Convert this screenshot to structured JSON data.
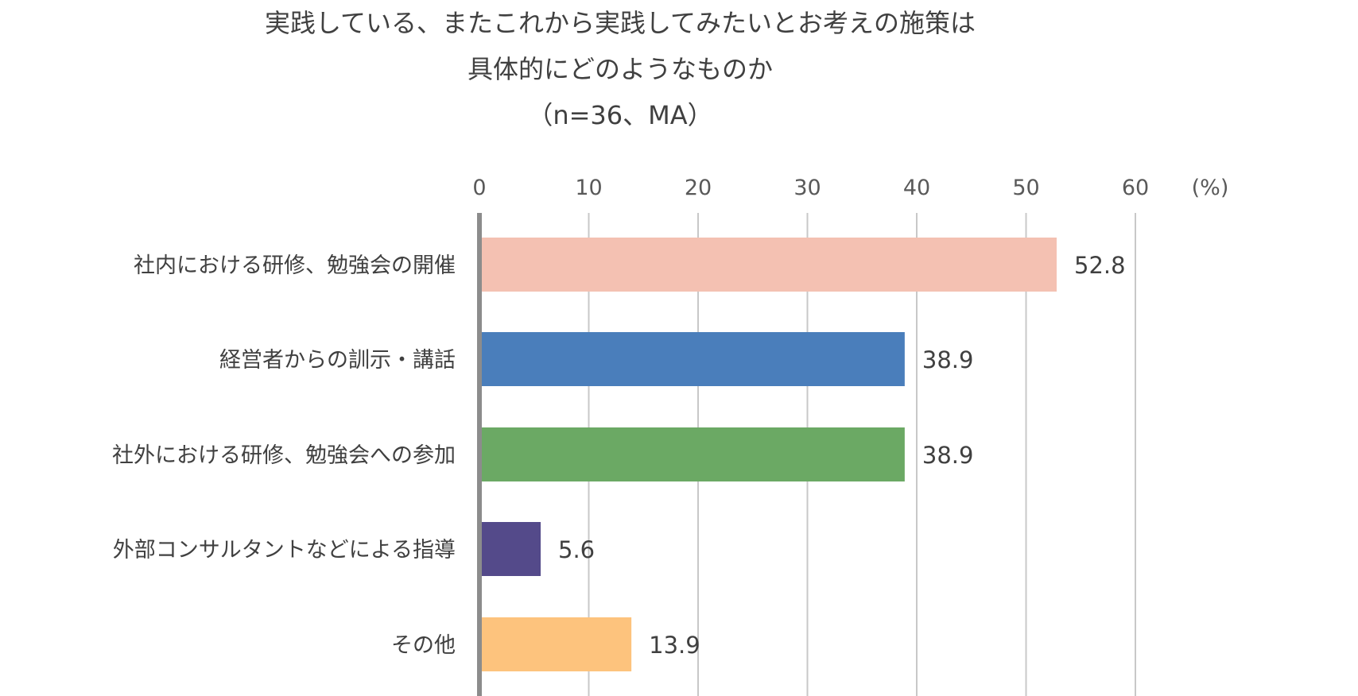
{
  "chart_data": {
    "type": "bar",
    "orientation": "horizontal",
    "title_lines": [
      "実践している、またこれから実践してみたいとお考えの施策は",
      "具体的にどのようなものか",
      "（n=36、MA）"
    ],
    "unit_label": "(%)",
    "categories": [
      "社内における研修、勉強会の開催",
      "経営者からの訓示・講話",
      "社外における研修、勉強会への参加",
      "外部コンサルタントなどによる指導",
      "その他"
    ],
    "values": [
      52.8,
      38.9,
      38.9,
      5.6,
      13.9
    ],
    "value_labels": [
      "52.8",
      "38.9",
      "38.9",
      "5.6",
      "13.9"
    ],
    "bar_colors": [
      "#F4C1B2",
      "#4A7EBB",
      "#6BA964",
      "#544A8A",
      "#FDC37D"
    ],
    "xlim": [
      0,
      60
    ],
    "xticks": [
      0,
      10,
      20,
      30,
      40,
      50,
      60
    ],
    "grid": true,
    "axis_position": "top"
  }
}
